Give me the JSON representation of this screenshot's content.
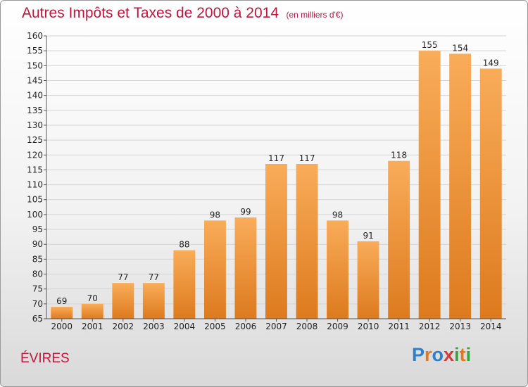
{
  "header": {
    "title": "Autres Impôts et Taxes de 2000 à 2014",
    "subtitle": "(en milliers d'€)"
  },
  "commune": "ÉVIRES",
  "brand": {
    "name": "Proxiti",
    "letter_colors": [
      "#2f7fd0",
      "#e8761a",
      "#2f7fd0",
      "#d63a3a",
      "#3aa040",
      "#e8761a",
      "#3aa040"
    ]
  },
  "colors": {
    "bar_light": "#f9ac59",
    "bar_dark": "#dd7a1e",
    "title": "#c0163a",
    "grid": "#d4d4d4"
  },
  "chart_data": {
    "type": "bar",
    "title": "Autres Impôts et Taxes de 2000 à 2014",
    "subtitle": "(en milliers d'€)",
    "xlabel": "",
    "ylabel": "",
    "ylim": [
      65,
      160
    ],
    "ytick_step": 5,
    "grid": true,
    "categories": [
      "2000",
      "2001",
      "2002",
      "2003",
      "2004",
      "2005",
      "2006",
      "2007",
      "2008",
      "2009",
      "2010",
      "2011",
      "2012",
      "2013",
      "2014"
    ],
    "values": [
      69,
      70,
      77,
      77,
      88,
      98,
      99,
      117,
      117,
      98,
      91,
      118,
      155,
      154,
      149
    ]
  }
}
